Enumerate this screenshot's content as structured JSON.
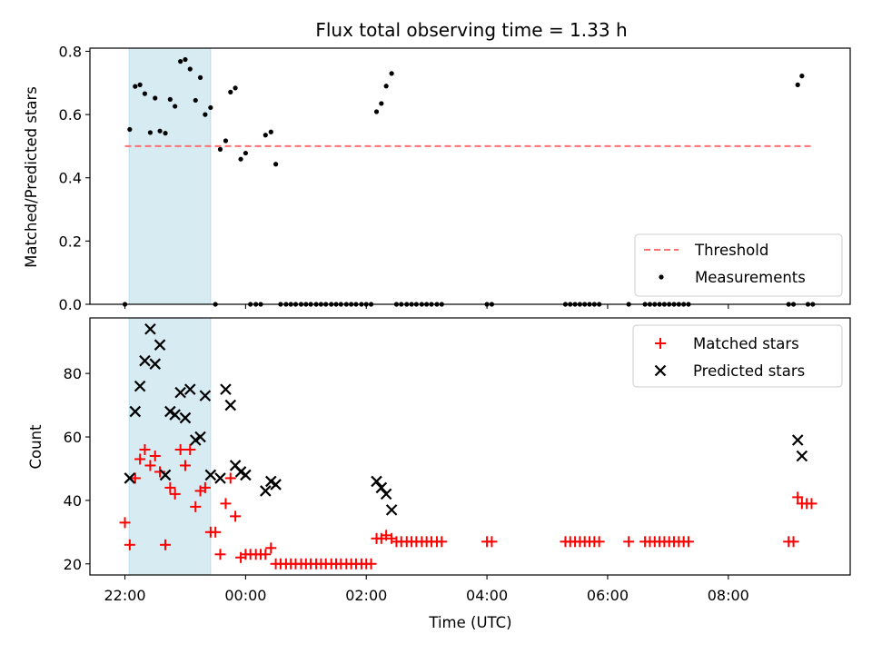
{
  "chart_data": {
    "title": "Flux total observing time = 1.33 h",
    "xlabel": "Time (UTC)",
    "x_unit": "hours after 22:00 UTC",
    "x_ticks": [
      {
        "value": 0,
        "label": "22:00"
      },
      {
        "value": 2,
        "label": "00:00"
      },
      {
        "value": 4,
        "label": "02:00"
      },
      {
        "value": 6,
        "label": "04:00"
      },
      {
        "value": 8,
        "label": "06:00"
      },
      {
        "value": 10,
        "label": "08:00"
      }
    ],
    "xlim": [
      -0.58,
      12.02
    ],
    "highlight_span": {
      "x0": 0.07,
      "x1": 1.42,
      "color": "#add8e6"
    },
    "panels": [
      {
        "type": "scatter",
        "ylabel": "Matched/Predicted stars",
        "ylim": [
          0,
          0.81
        ],
        "y_ticks": [
          "0.0",
          "0.2",
          "0.4",
          "0.6",
          "0.8"
        ],
        "y_tick_values": [
          0,
          0.2,
          0.4,
          0.6,
          0.8
        ],
        "threshold": {
          "name": "Threshold",
          "y": 0.5,
          "x0": 0,
          "x1": 11.4,
          "color": "#ff7070"
        },
        "measurements": {
          "name": "Measurements",
          "color": "#000000",
          "points": [
            [
              0.0,
              0.0
            ],
            [
              0.08,
              0.553
            ],
            [
              0.17,
              0.689
            ],
            [
              0.25,
              0.694
            ],
            [
              0.33,
              0.666
            ],
            [
              0.42,
              0.543
            ],
            [
              0.5,
              0.652
            ],
            [
              0.58,
              0.548
            ],
            [
              0.67,
              0.541
            ],
            [
              0.75,
              0.648
            ],
            [
              0.83,
              0.626
            ],
            [
              0.92,
              0.768
            ],
            [
              1.0,
              0.774
            ],
            [
              1.08,
              0.744
            ],
            [
              1.17,
              0.645
            ],
            [
              1.25,
              0.717
            ],
            [
              1.33,
              0.6
            ],
            [
              1.42,
              0.622
            ],
            [
              1.5,
              0.0
            ],
            [
              1.58,
              0.49
            ],
            [
              1.67,
              0.517
            ],
            [
              1.75,
              0.671
            ],
            [
              1.83,
              0.684
            ],
            [
              1.92,
              0.459
            ],
            [
              2.0,
              0.478
            ],
            [
              2.08,
              0.0
            ],
            [
              2.17,
              0.0
            ],
            [
              2.25,
              0.0
            ],
            [
              2.33,
              0.535
            ],
            [
              2.42,
              0.545
            ],
            [
              2.5,
              0.443
            ],
            [
              2.58,
              0.0
            ],
            [
              2.67,
              0.0
            ],
            [
              2.75,
              0.0
            ],
            [
              2.83,
              0.0
            ],
            [
              2.92,
              0.0
            ],
            [
              3.0,
              0.0
            ],
            [
              3.08,
              0.0
            ],
            [
              3.17,
              0.0
            ],
            [
              3.25,
              0.0
            ],
            [
              3.33,
              0.0
            ],
            [
              3.42,
              0.0
            ],
            [
              3.5,
              0.0
            ],
            [
              3.58,
              0.0
            ],
            [
              3.67,
              0.0
            ],
            [
              3.75,
              0.0
            ],
            [
              3.83,
              0.0
            ],
            [
              3.92,
              0.0
            ],
            [
              4.0,
              0.0
            ],
            [
              4.08,
              0.0
            ],
            [
              4.17,
              0.609
            ],
            [
              4.25,
              0.635
            ],
            [
              4.33,
              0.69
            ],
            [
              4.42,
              0.73
            ],
            [
              4.5,
              0.0
            ],
            [
              4.58,
              0.0
            ],
            [
              4.67,
              0.0
            ],
            [
              4.75,
              0.0
            ],
            [
              4.83,
              0.0
            ],
            [
              4.92,
              0.0
            ],
            [
              5.0,
              0.0
            ],
            [
              5.08,
              0.0
            ],
            [
              5.17,
              0.0
            ],
            [
              5.25,
              0.0
            ],
            [
              6.0,
              0.0
            ],
            [
              6.08,
              0.0
            ],
            [
              7.3,
              0.0
            ],
            [
              7.38,
              0.0
            ],
            [
              7.46,
              0.0
            ],
            [
              7.54,
              0.0
            ],
            [
              7.62,
              0.0
            ],
            [
              7.7,
              0.0
            ],
            [
              7.78,
              0.0
            ],
            [
              7.86,
              0.0
            ],
            [
              8.35,
              0.0
            ],
            [
              8.62,
              0.0
            ],
            [
              8.7,
              0.0
            ],
            [
              8.78,
              0.0
            ],
            [
              8.86,
              0.0
            ],
            [
              8.94,
              0.0
            ],
            [
              9.02,
              0.0
            ],
            [
              9.1,
              0.0
            ],
            [
              9.18,
              0.0
            ],
            [
              9.26,
              0.0
            ],
            [
              9.34,
              0.0
            ],
            [
              11.0,
              0.0
            ],
            [
              11.08,
              0.0
            ],
            [
              11.15,
              0.694
            ],
            [
              11.22,
              0.722
            ],
            [
              11.32,
              0.0
            ],
            [
              11.4,
              0.0
            ]
          ]
        },
        "legend": [
          "Threshold",
          "Measurements"
        ]
      },
      {
        "type": "scatter",
        "ylabel": "Count",
        "ylim": [
          16.5,
          97.5
        ],
        "y_ticks": [
          "20",
          "40",
          "60",
          "80"
        ],
        "y_tick_values": [
          20,
          40,
          60,
          80
        ],
        "matched": {
          "name": "Matched stars",
          "color": "#ff0000",
          "points": [
            [
              0.0,
              33
            ],
            [
              0.08,
              26
            ],
            [
              0.17,
              47
            ],
            [
              0.25,
              53
            ],
            [
              0.33,
              56
            ],
            [
              0.42,
              51
            ],
            [
              0.5,
              54
            ],
            [
              0.58,
              49
            ],
            [
              0.67,
              26
            ],
            [
              0.75,
              44
            ],
            [
              0.83,
              42
            ],
            [
              0.92,
              56
            ],
            [
              1.0,
              51
            ],
            [
              1.08,
              56
            ],
            [
              1.17,
              38
            ],
            [
              1.25,
              43
            ],
            [
              1.33,
              44
            ],
            [
              1.42,
              30
            ],
            [
              1.5,
              30
            ],
            [
              1.58,
              23
            ],
            [
              1.67,
              39
            ],
            [
              1.75,
              47
            ],
            [
              1.83,
              35
            ],
            [
              1.92,
              22
            ],
            [
              2.0,
              23
            ],
            [
              2.08,
              23
            ],
            [
              2.17,
              23
            ],
            [
              2.25,
              23
            ],
            [
              2.33,
              23
            ],
            [
              2.42,
              25
            ],
            [
              2.5,
              20
            ],
            [
              2.58,
              20
            ],
            [
              2.67,
              20
            ],
            [
              2.75,
              20
            ],
            [
              2.83,
              20
            ],
            [
              2.92,
              20
            ],
            [
              3.0,
              20
            ],
            [
              3.08,
              20
            ],
            [
              3.17,
              20
            ],
            [
              3.25,
              20
            ],
            [
              3.33,
              20
            ],
            [
              3.42,
              20
            ],
            [
              3.5,
              20
            ],
            [
              3.58,
              20
            ],
            [
              3.67,
              20
            ],
            [
              3.75,
              20
            ],
            [
              3.83,
              20
            ],
            [
              3.92,
              20
            ],
            [
              4.0,
              20
            ],
            [
              4.08,
              20
            ],
            [
              4.17,
              28
            ],
            [
              4.25,
              28
            ],
            [
              4.33,
              29
            ],
            [
              4.42,
              28
            ],
            [
              4.5,
              27
            ],
            [
              4.58,
              27
            ],
            [
              4.67,
              27
            ],
            [
              4.75,
              27
            ],
            [
              4.83,
              27
            ],
            [
              4.92,
              27
            ],
            [
              5.0,
              27
            ],
            [
              5.08,
              27
            ],
            [
              5.17,
              27
            ],
            [
              5.25,
              27
            ],
            [
              6.0,
              27
            ],
            [
              6.08,
              27
            ],
            [
              7.3,
              27
            ],
            [
              7.38,
              27
            ],
            [
              7.46,
              27
            ],
            [
              7.54,
              27
            ],
            [
              7.62,
              27
            ],
            [
              7.7,
              27
            ],
            [
              7.78,
              27
            ],
            [
              7.86,
              27
            ],
            [
              8.35,
              27
            ],
            [
              8.62,
              27
            ],
            [
              8.7,
              27
            ],
            [
              8.78,
              27
            ],
            [
              8.86,
              27
            ],
            [
              8.94,
              27
            ],
            [
              9.02,
              27
            ],
            [
              9.1,
              27
            ],
            [
              9.18,
              27
            ],
            [
              9.26,
              27
            ],
            [
              9.34,
              27
            ],
            [
              11.0,
              27
            ],
            [
              11.08,
              27
            ],
            [
              11.15,
              41
            ],
            [
              11.22,
              39
            ],
            [
              11.3,
              39
            ],
            [
              11.38,
              39
            ]
          ]
        },
        "predicted": {
          "name": "Predicted stars",
          "color": "#000000",
          "points": [
            [
              0.08,
              47
            ],
            [
              0.17,
              68
            ],
            [
              0.25,
              76
            ],
            [
              0.33,
              84
            ],
            [
              0.42,
              94
            ],
            [
              0.5,
              83
            ],
            [
              0.58,
              89
            ],
            [
              0.67,
              48
            ],
            [
              0.75,
              68
            ],
            [
              0.83,
              67
            ],
            [
              0.92,
              74
            ],
            [
              1.0,
              66
            ],
            [
              1.08,
              75
            ],
            [
              1.17,
              59
            ],
            [
              1.25,
              60
            ],
            [
              1.33,
              73
            ],
            [
              1.42,
              48
            ],
            [
              1.58,
              47
            ],
            [
              1.67,
              75
            ],
            [
              1.75,
              70
            ],
            [
              1.83,
              51
            ],
            [
              1.92,
              49
            ],
            [
              2.0,
              48
            ],
            [
              2.33,
              43
            ],
            [
              2.42,
              46
            ],
            [
              2.5,
              45
            ],
            [
              4.17,
              46
            ],
            [
              4.25,
              44
            ],
            [
              4.33,
              42
            ],
            [
              4.42,
              37
            ],
            [
              11.15,
              59
            ],
            [
              11.22,
              54
            ]
          ]
        },
        "legend": [
          "Matched stars",
          "Predicted stars"
        ]
      }
    ]
  }
}
